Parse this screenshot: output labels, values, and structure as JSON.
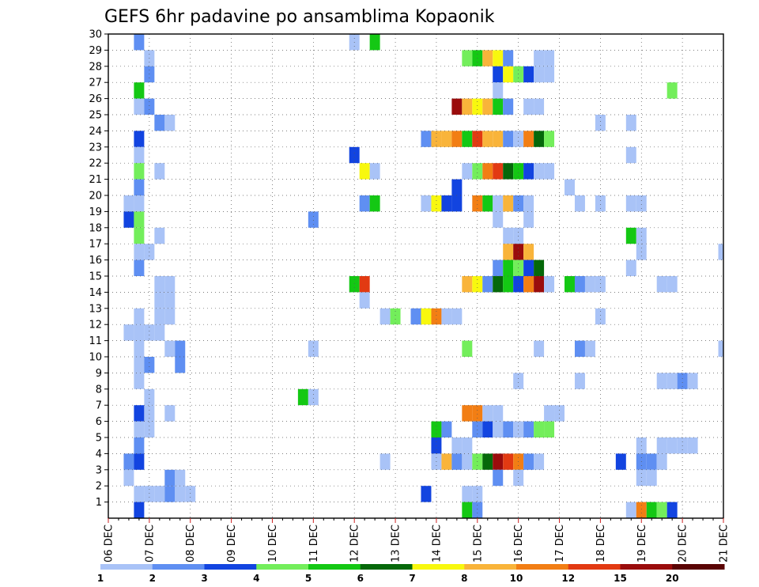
{
  "chart_data": {
    "type": "heatmap",
    "title": "GEFS 6hr padavine po ansamblima Kopaonik",
    "xlabel": "",
    "ylabel": "",
    "x_ticks": [
      "06 DEC",
      "07 DEC",
      "08 DEC",
      "09 DEC",
      "10 DEC",
      "11 DEC",
      "12 DEC",
      "13 DEC",
      "14 DEC",
      "15 DEC",
      "16 DEC",
      "17 DEC",
      "18 DEC",
      "19 DEC",
      "20 DEC",
      "21 DEC"
    ],
    "y_ticks": [
      "1",
      "2",
      "3",
      "4",
      "5",
      "6",
      "7",
      "8",
      "9",
      "10",
      "11",
      "12",
      "13",
      "14",
      "15",
      "16",
      "17",
      "18",
      "19",
      "20",
      "21",
      "22",
      "23",
      "24",
      "25",
      "26",
      "27",
      "28",
      "29",
      "30"
    ],
    "x_range": [
      "2025-12-06T00",
      "2025-12-21T00"
    ],
    "x_step_hours": 6,
    "y_range": [
      0,
      30
    ],
    "grid": true,
    "legend": "bottom-colorbar",
    "colorbar": {
      "labels": [
        "1",
        "2",
        "3",
        "4",
        "5",
        "6",
        "7",
        "8",
        "10",
        "12",
        "15",
        "20"
      ],
      "colors": [
        "#a9c3f7",
        "#5f8ff2",
        "#1244e0",
        "#73ee5b",
        "#14c814",
        "#05680a",
        "#f8f80e",
        "#f9b43a",
        "#f27e14",
        "#e23a12",
        "#9a0c0c",
        "#5a0404"
      ]
    },
    "cells": [
      [
        "2025-12-06T18",
        30,
        "#5f8ff2"
      ],
      [
        "2025-12-12T00",
        30,
        "#a9c3f7"
      ],
      [
        "2025-12-12T12",
        30,
        "#14c814"
      ],
      [
        "2025-12-07T00",
        29,
        "#a9c3f7"
      ],
      [
        "2025-12-14T18",
        29,
        "#73ee5b"
      ],
      [
        "2025-12-15T00",
        29,
        "#14c814"
      ],
      [
        "2025-12-15T06",
        29,
        "#f9b43a"
      ],
      [
        "2025-12-15T12",
        29,
        "#f8f80e"
      ],
      [
        "2025-12-15T18",
        29,
        "#5f8ff2"
      ],
      [
        "2025-12-16T12",
        29,
        "#a9c3f7"
      ],
      [
        "2025-12-16T18",
        29,
        "#a9c3f7"
      ],
      [
        "2025-12-07T00",
        28,
        "#5f8ff2"
      ],
      [
        "2025-12-15T12",
        28,
        "#1244e0"
      ],
      [
        "2025-12-15T18",
        28,
        "#f8f80e"
      ],
      [
        "2025-12-16T00",
        28,
        "#73ee5b"
      ],
      [
        "2025-12-16T06",
        28,
        "#1244e0"
      ],
      [
        "2025-12-16T12",
        28,
        "#a9c3f7"
      ],
      [
        "2025-12-16T18",
        28,
        "#a9c3f7"
      ],
      [
        "2025-12-06T18",
        27,
        "#14c814"
      ],
      [
        "2025-12-15T12",
        27,
        "#a9c3f7"
      ],
      [
        "2025-12-19T18",
        27,
        "#73ee5b"
      ],
      [
        "2025-12-06T18",
        26,
        "#a9c3f7"
      ],
      [
        "2025-12-07T00",
        26,
        "#5f8ff2"
      ],
      [
        "2025-12-14T12",
        26,
        "#9a0c0c"
      ],
      [
        "2025-12-14T18",
        26,
        "#f9b43a"
      ],
      [
        "2025-12-15T00",
        26,
        "#f8f80e"
      ],
      [
        "2025-12-15T06",
        26,
        "#f9b43a"
      ],
      [
        "2025-12-15T12",
        26,
        "#14c814"
      ],
      [
        "2025-12-15T18",
        26,
        "#5f8ff2"
      ],
      [
        "2025-12-16T06",
        26,
        "#a9c3f7"
      ],
      [
        "2025-12-16T12",
        26,
        "#a9c3f7"
      ],
      [
        "2025-12-07T06",
        25,
        "#5f8ff2"
      ],
      [
        "2025-12-07T12",
        25,
        "#a9c3f7"
      ],
      [
        "2025-12-18T00",
        25,
        "#a9c3f7"
      ],
      [
        "2025-12-18T18",
        25,
        "#a9c3f7"
      ],
      [
        "2025-12-06T18",
        24,
        "#1244e0"
      ],
      [
        "2025-12-13T18",
        24,
        "#5f8ff2"
      ],
      [
        "2025-12-14T00",
        24,
        "#f9b43a"
      ],
      [
        "2025-12-14T06",
        24,
        "#f9b43a"
      ],
      [
        "2025-12-14T12",
        24,
        "#f27e14"
      ],
      [
        "2025-12-14T18",
        24,
        "#14c814"
      ],
      [
        "2025-12-15T00",
        24,
        "#e23a12"
      ],
      [
        "2025-12-15T06",
        24,
        "#f9b43a"
      ],
      [
        "2025-12-15T12",
        24,
        "#f9b43a"
      ],
      [
        "2025-12-15T18",
        24,
        "#5f8ff2"
      ],
      [
        "2025-12-16T00",
        24,
        "#a9c3f7"
      ],
      [
        "2025-12-16T06",
        24,
        "#f27e14"
      ],
      [
        "2025-12-16T12",
        24,
        "#05680a"
      ],
      [
        "2025-12-16T18",
        24,
        "#73ee5b"
      ],
      [
        "2025-12-06T18",
        23,
        "#a9c3f7"
      ],
      [
        "2025-12-12T00",
        23,
        "#1244e0"
      ],
      [
        "2025-12-18T18",
        23,
        "#a9c3f7"
      ],
      [
        "2025-12-06T18",
        22,
        "#73ee5b"
      ],
      [
        "2025-12-07T06",
        22,
        "#a9c3f7"
      ],
      [
        "2025-12-12T06",
        22,
        "#f8f80e"
      ],
      [
        "2025-12-12T12",
        22,
        "#a9c3f7"
      ],
      [
        "2025-12-14T18",
        22,
        "#a9c3f7"
      ],
      [
        "2025-12-15T00",
        22,
        "#73ee5b"
      ],
      [
        "2025-12-15T06",
        22,
        "#f27e14"
      ],
      [
        "2025-12-15T12",
        22,
        "#e23a12"
      ],
      [
        "2025-12-15T18",
        22,
        "#05680a"
      ],
      [
        "2025-12-16T00",
        22,
        "#14c814"
      ],
      [
        "2025-12-16T06",
        22,
        "#1244e0"
      ],
      [
        "2025-12-16T12",
        22,
        "#a9c3f7"
      ],
      [
        "2025-12-16T18",
        22,
        "#a9c3f7"
      ],
      [
        "2025-12-06T18",
        21,
        "#5f8ff2"
      ],
      [
        "2025-12-14T12",
        21,
        "#1244e0"
      ],
      [
        "2025-12-17T06",
        21,
        "#a9c3f7"
      ],
      [
        "2025-12-06T12",
        20,
        "#a9c3f7"
      ],
      [
        "2025-12-06T18",
        20,
        "#a9c3f7"
      ],
      [
        "2025-12-12T06",
        20,
        "#5f8ff2"
      ],
      [
        "2025-12-12T12",
        20,
        "#14c814"
      ],
      [
        "2025-12-13T18",
        20,
        "#a9c3f7"
      ],
      [
        "2025-12-14T00",
        20,
        "#f8f80e"
      ],
      [
        "2025-12-14T06",
        20,
        "#1244e0"
      ],
      [
        "2025-12-14T12",
        20,
        "#1244e0"
      ],
      [
        "2025-12-15T00",
        20,
        "#f27e14"
      ],
      [
        "2025-12-15T06",
        20,
        "#14c814"
      ],
      [
        "2025-12-15T12",
        20,
        "#a9c3f7"
      ],
      [
        "2025-12-15T18",
        20,
        "#f9b43a"
      ],
      [
        "2025-12-16T00",
        20,
        "#5f8ff2"
      ],
      [
        "2025-12-16T06",
        20,
        "#a9c3f7"
      ],
      [
        "2025-12-17T12",
        20,
        "#a9c3f7"
      ],
      [
        "2025-12-18T00",
        20,
        "#a9c3f7"
      ],
      [
        "2025-12-18T18",
        20,
        "#a9c3f7"
      ],
      [
        "2025-12-19T00",
        20,
        "#a9c3f7"
      ],
      [
        "2025-12-06T12",
        19,
        "#1244e0"
      ],
      [
        "2025-12-06T18",
        19,
        "#73ee5b"
      ],
      [
        "2025-12-11T00",
        19,
        "#5f8ff2"
      ],
      [
        "2025-12-15T12",
        19,
        "#a9c3f7"
      ],
      [
        "2025-12-16T06",
        19,
        "#a9c3f7"
      ],
      [
        "2025-12-06T18",
        18,
        "#73ee5b"
      ],
      [
        "2025-12-07T06",
        18,
        "#a9c3f7"
      ],
      [
        "2025-12-15T18",
        18,
        "#a9c3f7"
      ],
      [
        "2025-12-16T00",
        18,
        "#a9c3f7"
      ],
      [
        "2025-12-18T18",
        18,
        "#14c814"
      ],
      [
        "2025-12-19T00",
        18,
        "#a9c3f7"
      ],
      [
        "2025-12-06T18",
        17,
        "#a9c3f7"
      ],
      [
        "2025-12-07T00",
        17,
        "#a9c3f7"
      ],
      [
        "2025-12-15T18",
        17,
        "#f9b43a"
      ],
      [
        "2025-12-16T00",
        17,
        "#9a0c0c"
      ],
      [
        "2025-12-16T06",
        17,
        "#f9b43a"
      ],
      [
        "2025-12-19T00",
        17,
        "#a9c3f7"
      ],
      [
        "2025-12-21T00",
        17,
        "#a9c3f7"
      ],
      [
        "2025-12-06T18",
        16,
        "#5f8ff2"
      ],
      [
        "2025-12-15T12",
        16,
        "#5f8ff2"
      ],
      [
        "2025-12-15T18",
        16,
        "#14c814"
      ],
      [
        "2025-12-16T00",
        16,
        "#73ee5b"
      ],
      [
        "2025-12-16T06",
        16,
        "#1244e0"
      ],
      [
        "2025-12-16T12",
        16,
        "#05680a"
      ],
      [
        "2025-12-18T18",
        16,
        "#a9c3f7"
      ],
      [
        "2025-12-07T06",
        15,
        "#a9c3f7"
      ],
      [
        "2025-12-07T12",
        15,
        "#a9c3f7"
      ],
      [
        "2025-12-12T00",
        15,
        "#14c814"
      ],
      [
        "2025-12-12T06",
        15,
        "#e23a12"
      ],
      [
        "2025-12-14T18",
        15,
        "#f9b43a"
      ],
      [
        "2025-12-15T00",
        15,
        "#f8f80e"
      ],
      [
        "2025-12-15T06",
        15,
        "#5f8ff2"
      ],
      [
        "2025-12-15T12",
        15,
        "#05680a"
      ],
      [
        "2025-12-15T18",
        15,
        "#14c814"
      ],
      [
        "2025-12-16T00",
        15,
        "#1244e0"
      ],
      [
        "2025-12-16T06",
        15,
        "#f27e14"
      ],
      [
        "2025-12-16T12",
        15,
        "#9a0c0c"
      ],
      [
        "2025-12-16T18",
        15,
        "#a9c3f7"
      ],
      [
        "2025-12-17T06",
        15,
        "#14c814"
      ],
      [
        "2025-12-17T12",
        15,
        "#5f8ff2"
      ],
      [
        "2025-12-17T18",
        15,
        "#a9c3f7"
      ],
      [
        "2025-12-18T00",
        15,
        "#a9c3f7"
      ],
      [
        "2025-12-19T12",
        15,
        "#a9c3f7"
      ],
      [
        "2025-12-19T18",
        15,
        "#a9c3f7"
      ],
      [
        "2025-12-07T06",
        14,
        "#a9c3f7"
      ],
      [
        "2025-12-07T12",
        14,
        "#a9c3f7"
      ],
      [
        "2025-12-12T06",
        14,
        "#a9c3f7"
      ],
      [
        "2025-12-06T18",
        13,
        "#a9c3f7"
      ],
      [
        "2025-12-07T06",
        13,
        "#a9c3f7"
      ],
      [
        "2025-12-07T12",
        13,
        "#a9c3f7"
      ],
      [
        "2025-12-12T18",
        13,
        "#a9c3f7"
      ],
      [
        "2025-12-13T00",
        13,
        "#73ee5b"
      ],
      [
        "2025-12-13T12",
        13,
        "#5f8ff2"
      ],
      [
        "2025-12-13T18",
        13,
        "#f8f80e"
      ],
      [
        "2025-12-14T00",
        13,
        "#f27e14"
      ],
      [
        "2025-12-14T06",
        13,
        "#a9c3f7"
      ],
      [
        "2025-12-14T12",
        13,
        "#a9c3f7"
      ],
      [
        "2025-12-18T00",
        13,
        "#a9c3f7"
      ],
      [
        "2025-12-06T12",
        12,
        "#a9c3f7"
      ],
      [
        "2025-12-06T18",
        12,
        "#a9c3f7"
      ],
      [
        "2025-12-07T00",
        12,
        "#a9c3f7"
      ],
      [
        "2025-12-07T06",
        12,
        "#a9c3f7"
      ],
      [
        "2025-12-06T18",
        11,
        "#a9c3f7"
      ],
      [
        "2025-12-07T12",
        11,
        "#a9c3f7"
      ],
      [
        "2025-12-07T18",
        11,
        "#5f8ff2"
      ],
      [
        "2025-12-11T00",
        11,
        "#a9c3f7"
      ],
      [
        "2025-12-14T18",
        11,
        "#73ee5b"
      ],
      [
        "2025-12-16T12",
        11,
        "#a9c3f7"
      ],
      [
        "2025-12-17T12",
        11,
        "#5f8ff2"
      ],
      [
        "2025-12-17T18",
        11,
        "#a9c3f7"
      ],
      [
        "2025-12-21T00",
        11,
        "#a9c3f7"
      ],
      [
        "2025-12-06T18",
        10,
        "#a9c3f7"
      ],
      [
        "2025-12-07T00",
        10,
        "#5f8ff2"
      ],
      [
        "2025-12-07T18",
        10,
        "#5f8ff2"
      ],
      [
        "2025-12-06T18",
        9,
        "#a9c3f7"
      ],
      [
        "2025-12-16T00",
        9,
        "#a9c3f7"
      ],
      [
        "2025-12-17T12",
        9,
        "#a9c3f7"
      ],
      [
        "2025-12-19T12",
        9,
        "#a9c3f7"
      ],
      [
        "2025-12-19T18",
        9,
        "#a9c3f7"
      ],
      [
        "2025-12-20T00",
        9,
        "#5f8ff2"
      ],
      [
        "2025-12-20T06",
        9,
        "#a9c3f7"
      ],
      [
        "2025-12-07T00",
        8,
        "#a9c3f7"
      ],
      [
        "2025-12-10T18",
        8,
        "#14c814"
      ],
      [
        "2025-12-11T00",
        8,
        "#a9c3f7"
      ],
      [
        "2025-12-06T18",
        7,
        "#1244e0"
      ],
      [
        "2025-12-07T00",
        7,
        "#a9c3f7"
      ],
      [
        "2025-12-07T12",
        7,
        "#a9c3f7"
      ],
      [
        "2025-12-14T18",
        7,
        "#f27e14"
      ],
      [
        "2025-12-15T00",
        7,
        "#f27e14"
      ],
      [
        "2025-12-15T06",
        7,
        "#a9c3f7"
      ],
      [
        "2025-12-15T12",
        7,
        "#a9c3f7"
      ],
      [
        "2025-12-16T18",
        7,
        "#a9c3f7"
      ],
      [
        "2025-12-17T00",
        7,
        "#a9c3f7"
      ],
      [
        "2025-12-06T18",
        6,
        "#a9c3f7"
      ],
      [
        "2025-12-07T00",
        6,
        "#a9c3f7"
      ],
      [
        "2025-12-14T00",
        6,
        "#14c814"
      ],
      [
        "2025-12-14T06",
        6,
        "#5f8ff2"
      ],
      [
        "2025-12-15T00",
        6,
        "#5f8ff2"
      ],
      [
        "2025-12-15T06",
        6,
        "#1244e0"
      ],
      [
        "2025-12-15T12",
        6,
        "#a9c3f7"
      ],
      [
        "2025-12-15T18",
        6,
        "#5f8ff2"
      ],
      [
        "2025-12-16T00",
        6,
        "#a9c3f7"
      ],
      [
        "2025-12-16T06",
        6,
        "#5f8ff2"
      ],
      [
        "2025-12-16T12",
        6,
        "#73ee5b"
      ],
      [
        "2025-12-16T18",
        6,
        "#73ee5b"
      ],
      [
        "2025-12-06T18",
        5,
        "#5f8ff2"
      ],
      [
        "2025-12-14T00",
        5,
        "#1244e0"
      ],
      [
        "2025-12-14T12",
        5,
        "#a9c3f7"
      ],
      [
        "2025-12-14T18",
        5,
        "#a9c3f7"
      ],
      [
        "2025-12-19T00",
        5,
        "#a9c3f7"
      ],
      [
        "2025-12-19T12",
        5,
        "#a9c3f7"
      ],
      [
        "2025-12-19T18",
        5,
        "#a9c3f7"
      ],
      [
        "2025-12-20T00",
        5,
        "#a9c3f7"
      ],
      [
        "2025-12-20T06",
        5,
        "#a9c3f7"
      ],
      [
        "2025-12-06T12",
        4,
        "#5f8ff2"
      ],
      [
        "2025-12-06T18",
        4,
        "#1244e0"
      ],
      [
        "2025-12-12T18",
        4,
        "#a9c3f7"
      ],
      [
        "2025-12-14T00",
        4,
        "#a9c3f7"
      ],
      [
        "2025-12-14T06",
        4,
        "#f9b43a"
      ],
      [
        "2025-12-14T12",
        4,
        "#5f8ff2"
      ],
      [
        "2025-12-14T18",
        4,
        "#a9c3f7"
      ],
      [
        "2025-12-15T00",
        4,
        "#73ee5b"
      ],
      [
        "2025-12-15T06",
        4,
        "#05680a"
      ],
      [
        "2025-12-15T12",
        4,
        "#9a0c0c"
      ],
      [
        "2025-12-15T18",
        4,
        "#e23a12"
      ],
      [
        "2025-12-16T00",
        4,
        "#f27e14"
      ],
      [
        "2025-12-16T06",
        4,
        "#5f8ff2"
      ],
      [
        "2025-12-16T12",
        4,
        "#a9c3f7"
      ],
      [
        "2025-12-18T12",
        4,
        "#1244e0"
      ],
      [
        "2025-12-19T00",
        4,
        "#5f8ff2"
      ],
      [
        "2025-12-19T06",
        4,
        "#5f8ff2"
      ],
      [
        "2025-12-19T12",
        4,
        "#a9c3f7"
      ],
      [
        "2025-12-06T12",
        3,
        "#a9c3f7"
      ],
      [
        "2025-12-07T12",
        3,
        "#5f8ff2"
      ],
      [
        "2025-12-07T18",
        3,
        "#a9c3f7"
      ],
      [
        "2025-12-15T12",
        3,
        "#5f8ff2"
      ],
      [
        "2025-12-16T00",
        3,
        "#a9c3f7"
      ],
      [
        "2025-12-19T00",
        3,
        "#a9c3f7"
      ],
      [
        "2025-12-19T06",
        3,
        "#a9c3f7"
      ],
      [
        "2025-12-06T18",
        2,
        "#a9c3f7"
      ],
      [
        "2025-12-07T00",
        2,
        "#a9c3f7"
      ],
      [
        "2025-12-07T06",
        2,
        "#a9c3f7"
      ],
      [
        "2025-12-07T12",
        2,
        "#5f8ff2"
      ],
      [
        "2025-12-07T18",
        2,
        "#a9c3f7"
      ],
      [
        "2025-12-08T00",
        2,
        "#a9c3f7"
      ],
      [
        "2025-12-13T18",
        2,
        "#1244e0"
      ],
      [
        "2025-12-14T18",
        2,
        "#a9c3f7"
      ],
      [
        "2025-12-15T00",
        2,
        "#a9c3f7"
      ],
      [
        "2025-12-06T18",
        1,
        "#1244e0"
      ],
      [
        "2025-12-14T18",
        1,
        "#14c814"
      ],
      [
        "2025-12-15T00",
        1,
        "#5f8ff2"
      ],
      [
        "2025-12-18T18",
        1,
        "#a9c3f7"
      ],
      [
        "2025-12-19T00",
        1,
        "#f27e14"
      ],
      [
        "2025-12-19T06",
        1,
        "#14c814"
      ],
      [
        "2025-12-19T12",
        1,
        "#73ee5b"
      ],
      [
        "2025-12-19T18",
        1,
        "#1244e0"
      ]
    ]
  }
}
